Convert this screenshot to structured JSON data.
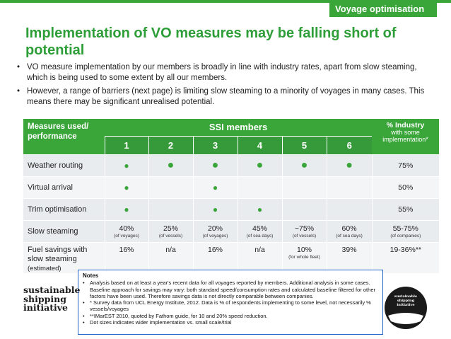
{
  "header": {
    "section_tag": "Voyage optimisation"
  },
  "title": "Implementation of VO measures may be falling short of potential",
  "bullets": [
    "VO measure implementation by our members is broadly in line with industry rates, apart from slow steaming, which is being used to some extent by all our members.",
    "However, a range of barriers (next page) is limiting slow steaming to a minority of voyages in many cases. This means there may be significant unrealised potential."
  ],
  "table": {
    "col_label": "Measures used/ performance",
    "group_label": "SSI members",
    "member_cols": [
      "1",
      "2",
      "3",
      "4",
      "5",
      "6"
    ],
    "industry_col": {
      "title": "% Industry",
      "sub": "with some implementation*"
    },
    "rows": [
      {
        "label": "Weather routing",
        "cells": [
          "small",
          "large",
          "large",
          "large",
          "large",
          "large"
        ],
        "industry": "75%"
      },
      {
        "label": "Virtual arrival",
        "cells": [
          "small",
          "",
          "small",
          "",
          "",
          ""
        ],
        "industry": "50%"
      },
      {
        "label": "Trim optimisation",
        "cells": [
          "small",
          "",
          "small",
          "small",
          "",
          ""
        ],
        "industry": "55%"
      }
    ],
    "slow_steaming": {
      "label": "Slow steaming",
      "cells": [
        {
          "v": "40%",
          "s": "(of voyages)"
        },
        {
          "v": "25%",
          "s": "(of vessels)"
        },
        {
          "v": "20%",
          "s": "(of voyages)"
        },
        {
          "v": "45%",
          "s": "(of sea days)"
        },
        {
          "v": "~75%",
          "s": "(of vessels)"
        },
        {
          "v": "60%",
          "s": "(of sea days)"
        }
      ],
      "industry": {
        "v": "55-75%",
        "s": "(of companies)"
      }
    },
    "fuel_savings": {
      "label": "Fuel savings with slow steaming",
      "label_sub": "(estimated)",
      "cells": [
        {
          "v": "16%",
          "s": ""
        },
        {
          "v": "n/a",
          "s": ""
        },
        {
          "v": "16%",
          "s": ""
        },
        {
          "v": "n/a",
          "s": ""
        },
        {
          "v": "10%",
          "s": "(for whole fleet)"
        },
        {
          "v": "39%",
          "s": ""
        }
      ],
      "industry": "19-36%**"
    }
  },
  "notes": {
    "heading": "Notes",
    "items": [
      "Analysis based on at least a year's recent data for all voyages reported by members. Additional analysis in some cases. Baseline approach for savings may vary: both standard speed/consumption rates and calculated baseline filtered for other factors have been used. Therefore savings data is not directly comparable between companies.",
      "* Survey data from UCL Energy Institute, 2012. Data is % of respondents implementing to some level, not necessarily % vessels/voyages",
      "**IMarEST 2010, quoted by Fathom guide, for 10 and 20% speed reduction.",
      "Dot sizes indicates wider implementation vs. small scale/trial"
    ]
  },
  "logo": {
    "lines": [
      "sustainable",
      "shipping",
      "initiative"
    ],
    "badge_lines": [
      "sustainable",
      "shipping",
      "initiative"
    ],
    "badge_color": "#1a1a1a"
  }
}
